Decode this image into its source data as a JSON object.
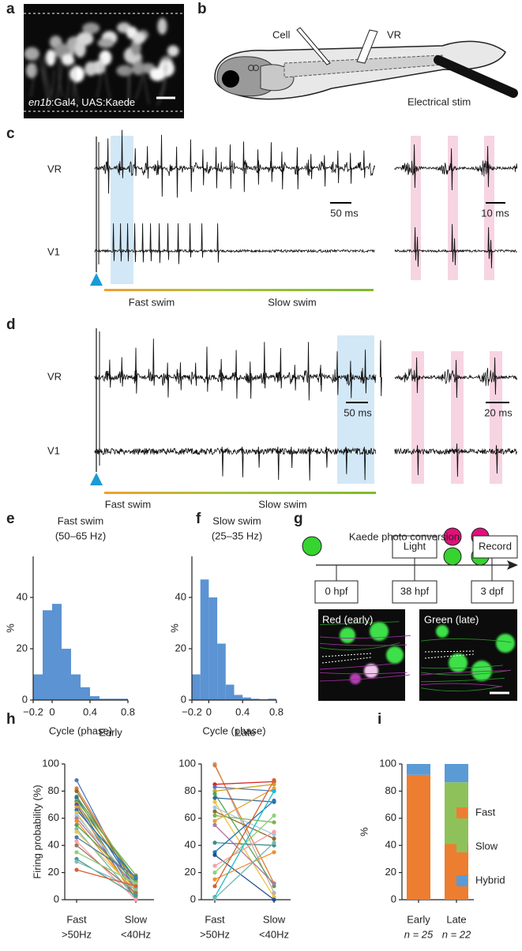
{
  "panel_labels": [
    "a",
    "b",
    "c",
    "d",
    "e",
    "f",
    "g",
    "h",
    "i"
  ],
  "a": {
    "genotype_italic": "en1b",
    "genotype_rest": ":Gal4, UAS:Kaede"
  },
  "b": {
    "cell": "Cell",
    "vr": "VR",
    "stim": "Electrical stim"
  },
  "c": {
    "vr": "VR",
    "v1": "V1",
    "scale_left": "50 ms",
    "scale_right": "10 ms",
    "fast": "Fast swim",
    "slow": "Slow swim"
  },
  "d": {
    "vr": "VR",
    "v1": "V1",
    "scale_left": "50 ms",
    "scale_right": "20 ms",
    "fast": "Fast swim",
    "slow": "Slow swim"
  },
  "g": {
    "title": "Kaede photo conversion",
    "light": "Light",
    "record": "Record",
    "t0": "0 hpf",
    "t1": "38 hpf",
    "t2": "3 dpf",
    "img1": "Red (early)",
    "img2": "Green (late)"
  },
  "chart_data": [
    {
      "type": "histogram",
      "title": "Fast swim",
      "subtitle": "(50–65 Hz)",
      "ylabel": "%",
      "xlabel": "Cycle (phase)",
      "bins": [
        -0.2,
        -0.1,
        0,
        0.1,
        0.2,
        0.3,
        0.4,
        0.5,
        0.6,
        0.7,
        0.8
      ],
      "values": [
        10,
        35,
        37.5,
        20,
        10,
        5,
        1.5,
        0.5,
        0.5,
        0.5
      ],
      "color": "#5b93d3",
      "xlim": [
        -0.2,
        0.8
      ],
      "xticks": [
        {
          "value": -0.2,
          "label": "−0.2"
        },
        0,
        0.4,
        0.8
      ],
      "ylim": [
        0,
        56
      ],
      "yticks": [
        0,
        20,
        40
      ]
    },
    {
      "type": "histogram",
      "title": "Slow swim",
      "subtitle": "(25–35 Hz)",
      "ylabel": "%",
      "xlabel": "Cycle (phase)",
      "bins": [
        -0.2,
        -0.1,
        0,
        0.1,
        0.2,
        0.3,
        0.4,
        0.5,
        0.6,
        0.7,
        0.8
      ],
      "values": [
        10,
        47,
        40,
        22,
        6,
        2,
        1,
        0.5,
        0.3,
        0.5
      ],
      "color": "#5b93d3",
      "xlim": [
        -0.2,
        0.8
      ],
      "xticks": [
        {
          "value": -0.2,
          "label": "−0.2"
        },
        0,
        0.4,
        0.8
      ],
      "ylim": [
        0,
        56
      ],
      "yticks": [
        0,
        20,
        40
      ]
    },
    {
      "type": "line",
      "title": "Early",
      "ylabel": "Firing probability (%)",
      "categories": [
        "Fast",
        "Slow"
      ],
      "category_sublabels": [
        ">50Hz",
        "<40Hz"
      ],
      "ylim": [
        0,
        100
      ],
      "yticks": [
        0,
        20,
        40,
        60,
        80,
        100
      ],
      "series": [
        {
          "color": "#4e79c4",
          "values": [
            88,
            5
          ]
        },
        {
          "color": "#e07b39",
          "values": [
            82,
            12
          ]
        },
        {
          "color": "#8c6d31",
          "values": [
            80,
            10
          ]
        },
        {
          "color": "#5a9e4b",
          "values": [
            76,
            15
          ]
        },
        {
          "color": "#2d6a9f",
          "values": [
            75,
            8
          ]
        },
        {
          "color": "#7fb24f",
          "values": [
            73,
            18
          ]
        },
        {
          "color": "#3e8e8e",
          "values": [
            72,
            3
          ]
        },
        {
          "color": "#c9a227",
          "values": [
            71,
            14
          ]
        },
        {
          "color": "#6a4c93",
          "values": [
            70,
            0
          ]
        },
        {
          "color": "#e6a23c",
          "values": [
            68,
            6
          ]
        },
        {
          "color": "#1f77b4",
          "values": [
            66,
            16
          ]
        },
        {
          "color": "#f0c040",
          "values": [
            64,
            2
          ]
        },
        {
          "color": "#9ecae1",
          "values": [
            62,
            11
          ]
        },
        {
          "color": "#b07aa1",
          "values": [
            60,
            9
          ]
        },
        {
          "color": "#f28e2b",
          "values": [
            58,
            4
          ]
        },
        {
          "color": "#59a14f",
          "values": [
            55,
            13
          ]
        },
        {
          "color": "#76b7b2",
          "values": [
            52,
            1
          ]
        },
        {
          "color": "#edc948",
          "values": [
            50,
            7
          ]
        },
        {
          "color": "#4e79a7",
          "values": [
            46,
            17
          ]
        },
        {
          "color": "#ff9da7",
          "values": [
            43,
            0
          ]
        },
        {
          "color": "#9c755f",
          "values": [
            40,
            5
          ]
        },
        {
          "color": "#8cd17d",
          "values": [
            35,
            12
          ]
        },
        {
          "color": "#499894",
          "values": [
            30,
            3
          ]
        },
        {
          "color": "#86bcb6",
          "values": [
            28,
            8
          ]
        },
        {
          "color": "#d95f30",
          "values": [
            22,
            10
          ]
        }
      ]
    },
    {
      "type": "line",
      "title": "Late",
      "categories": [
        "Fast",
        "Slow"
      ],
      "category_sublabels": [
        ">50Hz",
        "<40Hz"
      ],
      "ylim": [
        0,
        100
      ],
      "yticks": [
        0,
        20,
        40,
        60,
        80,
        100
      ],
      "series": [
        {
          "color": "#bab0ac",
          "values": [
            100,
            5
          ]
        },
        {
          "color": "#e07b39",
          "values": [
            99,
            12
          ]
        },
        {
          "color": "#d62728",
          "values": [
            85,
            87
          ]
        },
        {
          "color": "#4e79c4",
          "values": [
            83,
            80
          ]
        },
        {
          "color": "#c9a227",
          "values": [
            80,
            85
          ]
        },
        {
          "color": "#59a14f",
          "values": [
            78,
            10
          ]
        },
        {
          "color": "#2d6a9f",
          "values": [
            75,
            72
          ]
        },
        {
          "color": "#f0c040",
          "values": [
            72,
            2
          ]
        },
        {
          "color": "#9ecae1",
          "values": [
            68,
            48
          ]
        },
        {
          "color": "#8c6d31",
          "values": [
            65,
            45
          ]
        },
        {
          "color": "#7fb24f",
          "values": [
            62,
            57
          ]
        },
        {
          "color": "#e6a23c",
          "values": [
            58,
            82
          ]
        },
        {
          "color": "#b07aa1",
          "values": [
            55,
            12
          ]
        },
        {
          "color": "#3e8e8e",
          "values": [
            42,
            40
          ]
        },
        {
          "color": "#1f77b4",
          "values": [
            35,
            73
          ]
        },
        {
          "color": "#244f8f",
          "values": [
            33,
            0
          ]
        },
        {
          "color": "#ff9da7",
          "values": [
            25,
            50
          ]
        },
        {
          "color": "#8cd17d",
          "values": [
            20,
            62
          ]
        },
        {
          "color": "#f28e2b",
          "values": [
            15,
            35
          ]
        },
        {
          "color": "#d95f30",
          "values": [
            10,
            88
          ]
        },
        {
          "color": "#17becf",
          "values": [
            2,
            80
          ]
        },
        {
          "color": "#76b7b2",
          "values": [
            1,
            42
          ]
        }
      ]
    },
    {
      "type": "stacked_bar",
      "ylabel": "%",
      "categories": [
        "Early",
        "Late"
      ],
      "category_sublabels": [
        "n = 25",
        "n = 22"
      ],
      "ylim": [
        0,
        100
      ],
      "yticks": [
        0,
        20,
        40,
        60,
        80,
        100
      ],
      "series": [
        {
          "name": "Fast",
          "color": "#ed7d31",
          "values": [
            92,
            41
          ]
        },
        {
          "name": "Slow",
          "color": "#8fc15a",
          "values": [
            0,
            45.5
          ]
        },
        {
          "name": "Hybrid",
          "color": "#5b9bd5",
          "values": [
            8,
            13.5
          ]
        }
      ]
    }
  ]
}
